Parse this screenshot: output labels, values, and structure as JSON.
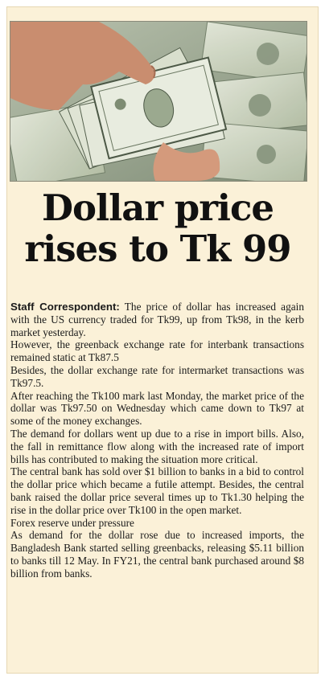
{
  "headline": {
    "line1": "Dollar price",
    "line2": "rises to Tk 99"
  },
  "article": {
    "byline": "Staff Correspondent:",
    "paragraphs": [
      "The price of dollar has increased again with the US currency traded for Tk99, up from Tk98, in the kerb market yesterday.",
      "However, the greenback exchange rate for interbank transactions remained static at Tk87.5",
      "Besides, the dollar exchange rate for intermarket transactions was Tk97.5.",
      "After reaching the Tk100 mark last Monday, the market price of the dollar was Tk97.50 on Wednesday which came down to Tk97 at some of the money exchanges.",
      "The demand for dollars went up due to a rise in import bills. Also, the fall in remittance flow along with the increased rate of import bills has contributed to making the situation more critical.",
      "The central bank has sold over $1 billion to banks in a bid to control the dollar price which became a futile attempt. Besides, the central bank raised the dollar price several times up to Tk1.30 helping the rise in the dollar price over Tk100 in the open market.",
      "Forex reserve under pressure",
      "As demand for the dollar rose due to increased imports, the Bangladesh Bank started selling greenbacks, releasing $5.11 billion to banks till 12 May. In FY21, the central bank purchased around $8 billion from banks."
    ]
  },
  "colors": {
    "paper": "#fbf1d8",
    "banknote": "#cfd6c2"
  }
}
